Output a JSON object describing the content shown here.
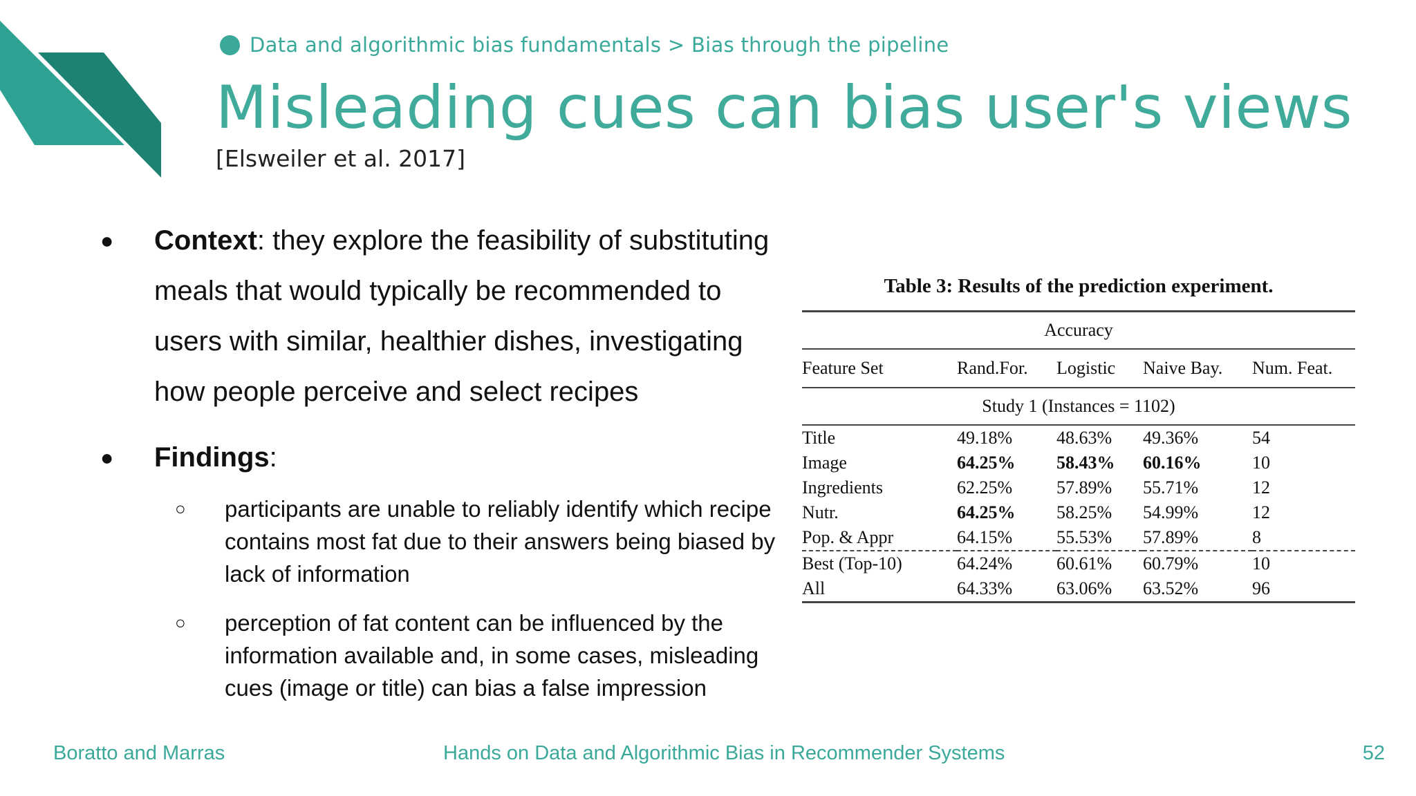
{
  "breadcrumb": "Data and algorithmic bias fundamentals > Bias through the pipeline",
  "title": "Misleading cues can bias user's views",
  "citation": "[Elsweiler et al. 2017]",
  "bullets": {
    "context_label": "Context",
    "context_text": ": they explore the feasibility of substituting meals that would typically be recommended to users with similar, healthier dishes, investigating how people perceive and select recipes",
    "findings_label": "Findings",
    "findings_colon": ":",
    "sub1": "participants are unable to reliably identify which recipe contains most fat due to their answers being biased by lack of information",
    "sub2": "perception of fat content can be influenced by the information available and, in some cases, misleading cues (image or title) can bias a false impression"
  },
  "table": {
    "caption": "Table 3: Results of the prediction experiment.",
    "accuracy_label": "Accuracy",
    "headers": [
      "Feature Set",
      "Rand.For.",
      "Logistic",
      "Naive Bay.",
      "Num. Feat."
    ],
    "study_label": "Study 1 (Instances = 1102)",
    "rows": [
      [
        "Title",
        "49.18%",
        "48.63%",
        "49.36%",
        "54"
      ],
      [
        "Image",
        "64.25%",
        "58.43%",
        "60.16%",
        "10"
      ],
      [
        "Ingredients",
        "62.25%",
        "57.89%",
        "55.71%",
        "12"
      ],
      [
        "Nutr.",
        "64.25%",
        "58.25%",
        "54.99%",
        "12"
      ],
      [
        "Pop. & Appr",
        "64.15%",
        "55.53%",
        "57.89%",
        "8"
      ],
      [
        "Best (Top-10)",
        "64.24%",
        "60.61%",
        "60.79%",
        "10"
      ],
      [
        "All",
        "64.33%",
        "63.06%",
        "63.52%",
        "96"
      ]
    ]
  },
  "footer": {
    "authors": "Boratto and Marras",
    "course": "Hands on Data and Algorithmic Bias in Recommender Systems",
    "page": "52"
  },
  "colors": {
    "accent": "#3aa99a",
    "accent_dark": "#1f7f72"
  }
}
